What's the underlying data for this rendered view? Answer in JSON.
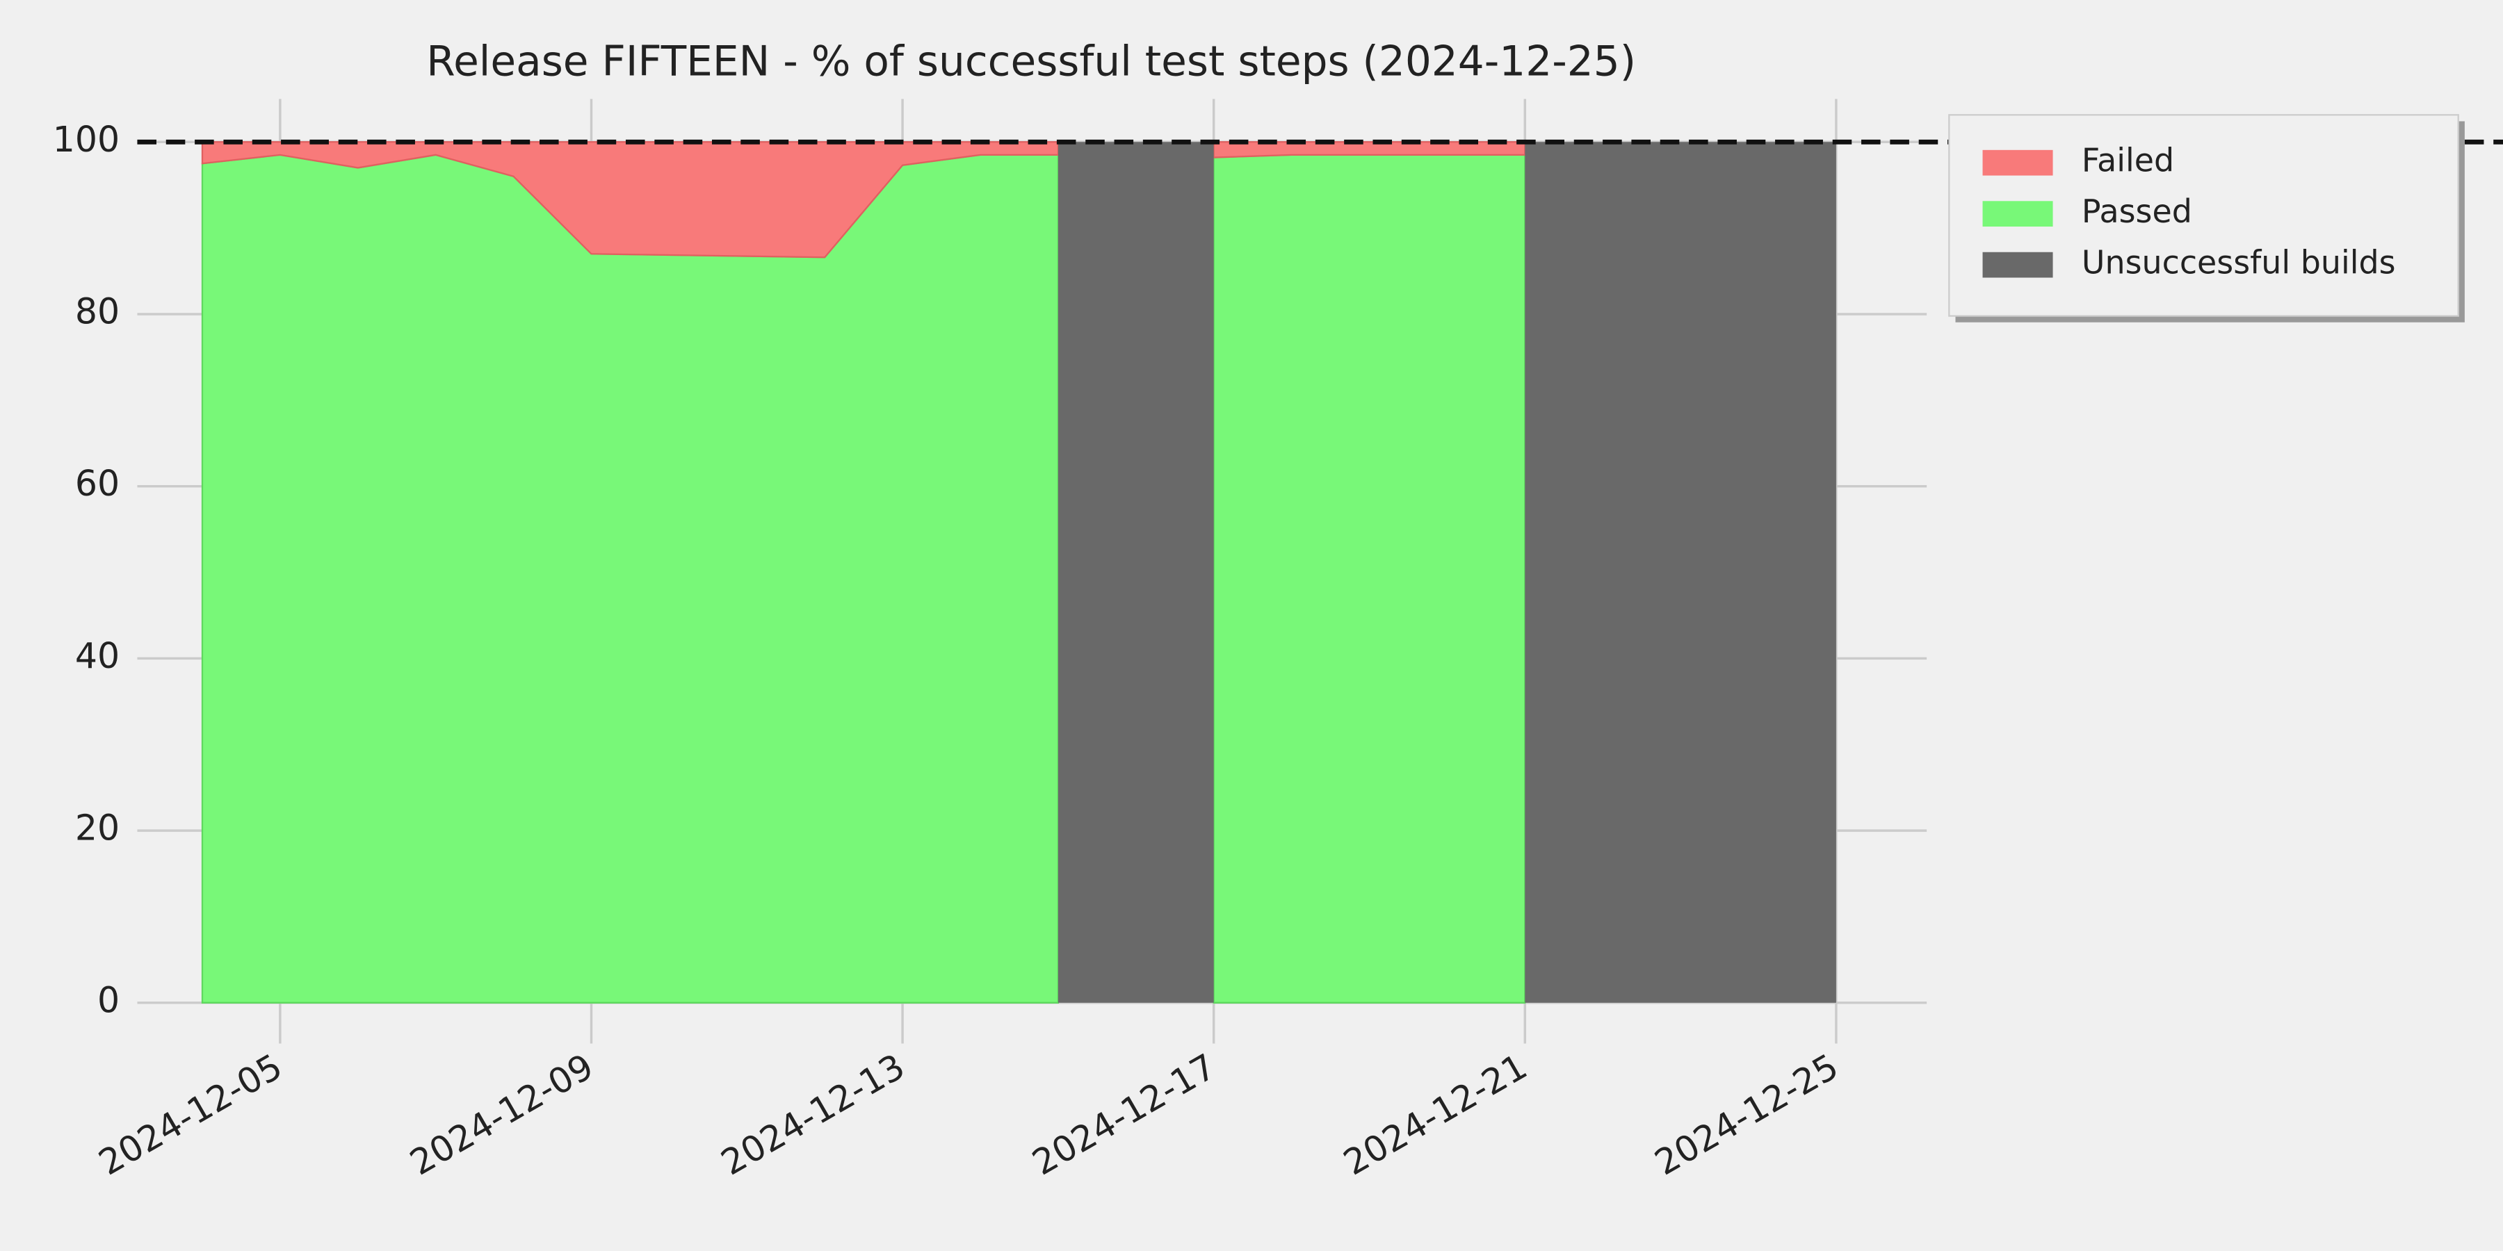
{
  "chart_data": {
    "type": "stacked-area",
    "title": "Release FIFTEEN - % of successful test steps (2024-12-25)",
    "x": [
      "2024-12-04",
      "2024-12-05",
      "2024-12-06",
      "2024-12-07",
      "2024-12-08",
      "2024-12-09",
      "2024-12-12",
      "2024-12-13",
      "2024-12-14",
      "2024-12-15",
      "2024-12-16",
      "2024-12-17",
      "2024-12-18",
      "2024-12-21"
    ],
    "series": [
      {
        "name": "Failed",
        "color": "#f87a7a",
        "values": [
          2.5,
          1.5,
          3,
          1.5,
          4,
          13,
          13.4,
          2.7,
          1.5,
          1.5,
          null,
          1.8,
          1.5,
          1.5
        ]
      },
      {
        "name": "Passed",
        "color": "#78f878",
        "values": [
          97.5,
          98.5,
          97,
          98.5,
          96,
          87,
          86.6,
          97.3,
          98.5,
          98.5,
          null,
          98.2,
          98.5,
          98.5
        ]
      }
    ],
    "unsuccessful_builds": {
      "name": "Unsuccessful builds",
      "color": "#696969",
      "value": 100,
      "spans": [
        [
          "2024-12-15",
          "2024-12-17"
        ],
        [
          "2024-12-21",
          "2024-12-25"
        ]
      ]
    },
    "reference_line": 100,
    "xlim": [
      "2024-12-03",
      "2024-12-26"
    ],
    "xticks": [
      "2024-12-05",
      "2024-12-09",
      "2024-12-13",
      "2024-12-17",
      "2024-12-21",
      "2024-12-25"
    ],
    "ylim": [
      -4,
      105
    ],
    "yticks": [
      0,
      20,
      40,
      60,
      80,
      100
    ],
    "grid": true,
    "legend": "outside-upper-right"
  }
}
